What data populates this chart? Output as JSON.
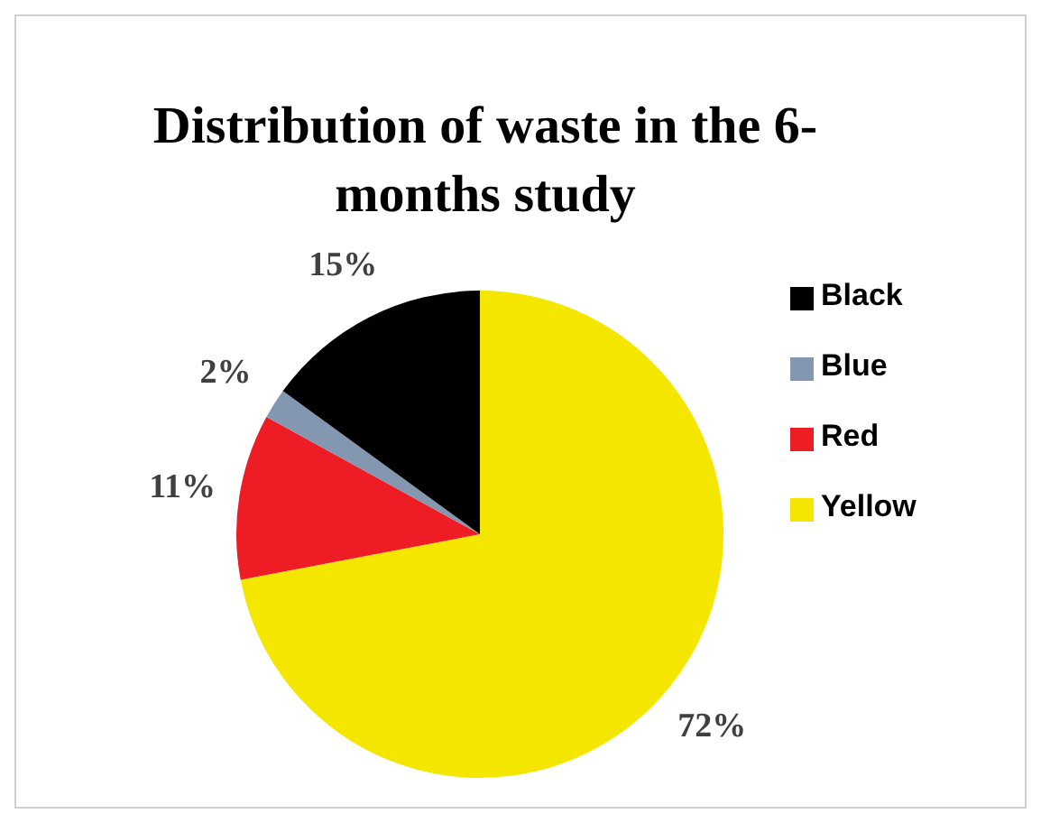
{
  "chart_data": {
    "type": "pie",
    "title": "Distribution of waste in the 6-months study",
    "categories": [
      "Yellow",
      "Red",
      "Blue",
      "Black"
    ],
    "values": [
      72,
      11,
      2,
      15
    ],
    "colors": [
      "#f5e600",
      "#ee1c25",
      "#8497b0",
      "#000000"
    ],
    "value_labels": [
      "72%",
      "11%",
      "2%",
      "15%"
    ],
    "legend": "right"
  }
}
